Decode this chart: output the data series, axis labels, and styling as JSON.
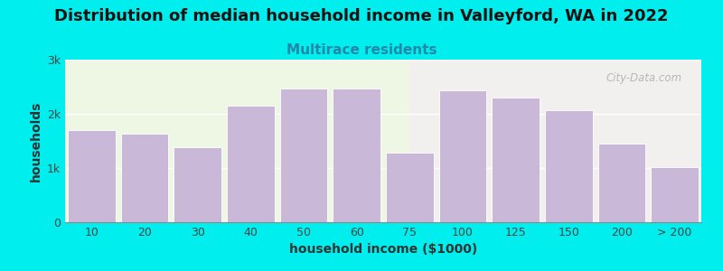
{
  "title": "Distribution of median household income in Valleyford, WA in 2022",
  "subtitle": "Multirace residents",
  "xlabel": "household income ($1000)",
  "ylabel": "households",
  "background_color": "#00EEEE",
  "plot_bg_color_left": "#edf7e4",
  "plot_bg_color_right": "#f2efef",
  "bar_color": "#c9b8d8",
  "bar_edge_color": "#ffffff",
  "categories": [
    "10",
    "20",
    "30",
    "40",
    "50",
    "60",
    "75",
    "100",
    "125",
    "150",
    "200",
    "> 200"
  ],
  "values": [
    1700,
    1640,
    1390,
    2150,
    2470,
    2460,
    1290,
    2430,
    2300,
    2060,
    1450,
    1010
  ],
  "yticks": [
    0,
    1000,
    2000,
    3000
  ],
  "yticklabels": [
    "0",
    "1k",
    "2k",
    "3k"
  ],
  "ylim": [
    0,
    3000
  ],
  "title_fontsize": 13,
  "subtitle_fontsize": 11,
  "subtitle_color": "#2288aa",
  "axis_label_fontsize": 10,
  "tick_fontsize": 9,
  "watermark_text": "City-Data.com",
  "watermark_color": "#aaaaaa",
  "split_index": 6.5
}
